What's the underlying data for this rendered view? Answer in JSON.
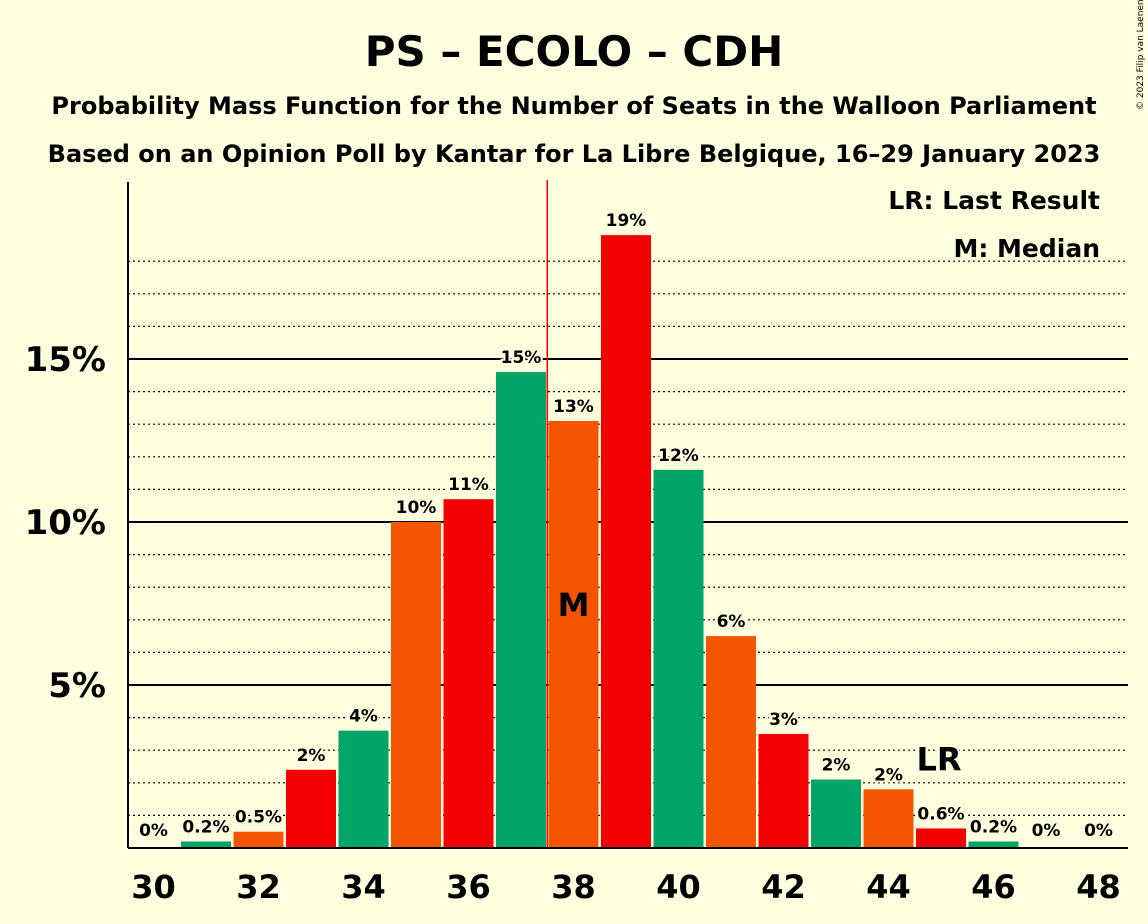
{
  "chart_data": {
    "type": "bar",
    "title": "PS – ECOLO – CDH",
    "subtitle": "Probability Mass Function for the Number of Seats in the Walloon Parliament",
    "subtitle2": "Based on an Opinion Poll by Kantar for La Libre Belgique, 16–29 January 2023",
    "copyright": "© 2023 Filip van Laenen",
    "x": [
      30,
      31,
      32,
      33,
      34,
      35,
      36,
      37,
      38,
      39,
      40,
      41,
      42,
      43,
      44,
      45,
      46,
      47,
      48
    ],
    "values": [
      0,
      0.2,
      0.5,
      2.4,
      3.6,
      10.0,
      10.7,
      14.6,
      13.1,
      18.8,
      11.6,
      6.5,
      3.5,
      2.1,
      1.8,
      0.6,
      0.2,
      0,
      0
    ],
    "value_labels": [
      "0%",
      "0.2%",
      "0.5%",
      "2%",
      "4%",
      "10%",
      "11%",
      "15%",
      "13%",
      "19%",
      "12%",
      "6%",
      "3%",
      "2%",
      "2%",
      "0.6%",
      "0.2%",
      "0%",
      "0%"
    ],
    "bar_colors": [
      "#F50000",
      "#00A567",
      "#F55500",
      "#F50000",
      "#00A567",
      "#F55500",
      "#F50000",
      "#00A567",
      "#F55500",
      "#F50000",
      "#00A567",
      "#F55500",
      "#F50000",
      "#00A567",
      "#F55500",
      "#F50000",
      "#00A567",
      "#F55500",
      "#F50000"
    ],
    "x_tick_values": [
      30,
      32,
      34,
      36,
      38,
      40,
      42,
      44,
      46,
      48
    ],
    "x_tick_labels": [
      "30",
      "32",
      "34",
      "36",
      "38",
      "40",
      "42",
      "44",
      "46",
      "48"
    ],
    "y_ticks": [
      5,
      10,
      15
    ],
    "y_tick_labels": [
      "5%",
      "10%",
      "15%"
    ],
    "ylim": [
      0,
      20.5
    ],
    "minor_grid_step": 1,
    "median": 38,
    "median_marker": "M",
    "last_result": 45,
    "last_result_marker": "LR",
    "median_line_color": "#F50000",
    "legend": [
      "LR: Last Result",
      "M: Median"
    ],
    "legend_position": "top-right"
  }
}
